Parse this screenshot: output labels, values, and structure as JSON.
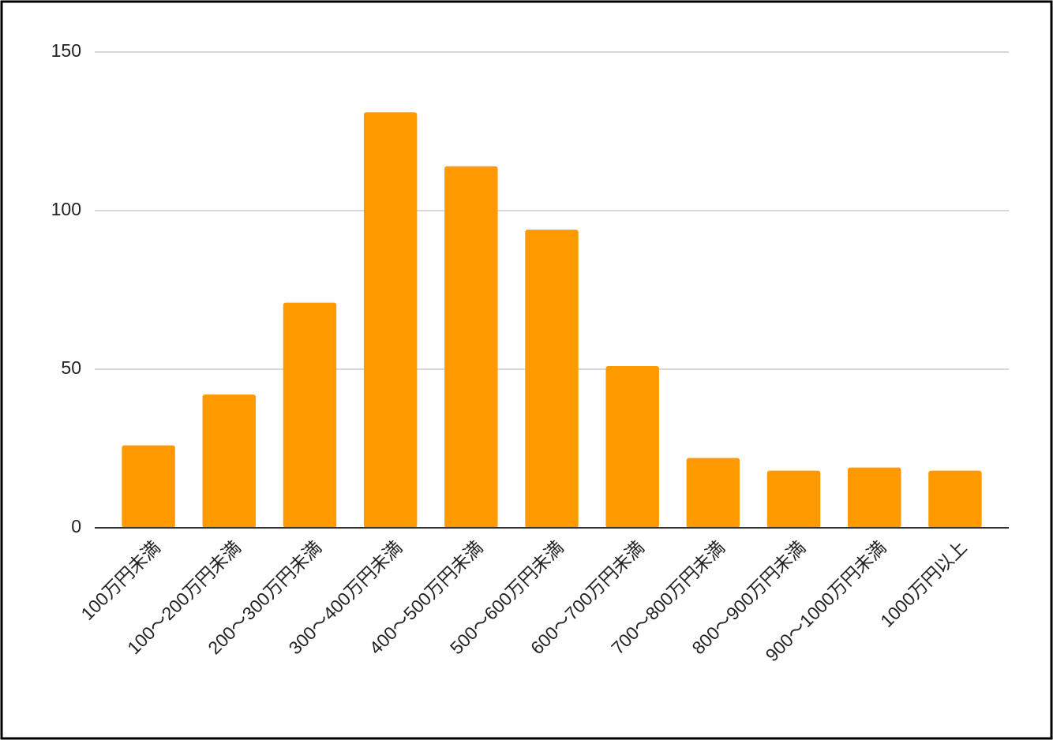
{
  "chart_data": {
    "type": "bar",
    "categories": [
      "100万円未満",
      "100〜200万円未満",
      "200〜300万円未満",
      "300〜400万円未満",
      "400〜500万円未満",
      "500〜600万円未満",
      "600〜700万円未満",
      "700〜800万円未満",
      "800〜900万円未満",
      "900〜1000万円未満",
      "1000万円以上"
    ],
    "values": [
      26,
      42,
      71,
      131,
      114,
      94,
      51,
      22,
      18,
      19,
      18
    ],
    "color": "#ff9900",
    "ylim": [
      0,
      150
    ],
    "yticks": [
      0,
      50,
      100,
      150
    ],
    "grid": true
  }
}
